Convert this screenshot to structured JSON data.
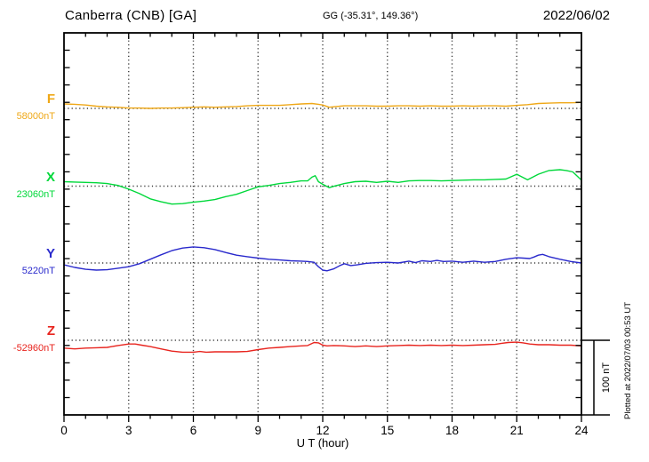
{
  "header": {
    "station": "Canberra (CNB)  [GA]",
    "coords": "GG (-35.31°, 149.36°)",
    "date": "2022/06/02"
  },
  "channels": [
    {
      "letter": "F",
      "value": "58000nT",
      "color": "#efa818"
    },
    {
      "letter": "X",
      "value": "23060nT",
      "color": "#00d83a"
    },
    {
      "letter": "Y",
      "value": "5220nT",
      "color": "#2929cc"
    },
    {
      "letter": "Z",
      "value": "-52960nT",
      "color": "#e8241e"
    }
  ],
  "axis": {
    "xlabel": "U T (hour)"
  },
  "scale_bar": {
    "label": "100 nT",
    "span_nT": 100
  },
  "footer": {
    "plotted": "Plotted at 2022/07/03 00:53 UT"
  },
  "chart_data": {
    "type": "line",
    "title": "Canberra (CNB) [GA] magnetogram 2022/06/02",
    "xlabel": "U T (hour)",
    "y_unit": "nT",
    "x_range": [
      0,
      24
    ],
    "x_ticks": [
      0,
      3,
      6,
      9,
      12,
      15,
      18,
      21,
      24
    ],
    "grid": "vertical-dotted-every-3h",
    "baseline_style": "horizontal-dotted-per-channel",
    "series": [
      {
        "name": "F",
        "base_value_nT": 58000,
        "color": "#efa818",
        "points": [
          [
            0,
            6
          ],
          [
            0.5,
            5.5
          ],
          [
            1,
            4.5
          ],
          [
            1.5,
            3
          ],
          [
            2,
            2
          ],
          [
            2.5,
            1.5
          ],
          [
            3,
            0.5
          ],
          [
            3.5,
            0.5
          ],
          [
            4,
            0
          ],
          [
            4.5,
            0.5
          ],
          [
            5,
            0.5
          ],
          [
            5.5,
            1
          ],
          [
            6,
            1.5
          ],
          [
            6.5,
            2
          ],
          [
            7,
            1.5
          ],
          [
            7.5,
            2
          ],
          [
            8,
            2.5
          ],
          [
            8.5,
            3.5
          ],
          [
            9,
            4
          ],
          [
            9.5,
            4
          ],
          [
            10,
            4
          ],
          [
            10.5,
            5
          ],
          [
            11,
            6
          ],
          [
            11.5,
            6.5
          ],
          [
            11.8,
            5.5
          ],
          [
            12,
            4.5
          ],
          [
            12.3,
            1.5
          ],
          [
            12.6,
            2.5
          ],
          [
            13,
            3.5
          ],
          [
            13.5,
            3.5
          ],
          [
            14,
            3.5
          ],
          [
            14.5,
            3
          ],
          [
            15,
            3
          ],
          [
            15.5,
            3.5
          ],
          [
            16,
            3.5
          ],
          [
            16.5,
            3
          ],
          [
            17,
            3.5
          ],
          [
            17.5,
            3
          ],
          [
            18,
            3
          ],
          [
            18.5,
            3.5
          ],
          [
            19,
            3
          ],
          [
            19.5,
            3.5
          ],
          [
            20,
            3.5
          ],
          [
            20.5,
            3
          ],
          [
            21,
            4
          ],
          [
            21.5,
            5
          ],
          [
            22,
            6.5
          ],
          [
            22.5,
            7
          ],
          [
            23,
            7.5
          ],
          [
            23.5,
            7.5
          ],
          [
            24,
            8
          ]
        ]
      },
      {
        "name": "X",
        "base_value_nT": 23060,
        "color": "#00d83a",
        "points": [
          [
            0,
            6
          ],
          [
            0.5,
            5.5
          ],
          [
            1,
            5
          ],
          [
            1.5,
            4.5
          ],
          [
            2,
            3.5
          ],
          [
            2.5,
            1
          ],
          [
            3,
            -4
          ],
          [
            3.5,
            -10
          ],
          [
            4,
            -17
          ],
          [
            4.5,
            -21
          ],
          [
            5,
            -24
          ],
          [
            5.5,
            -23.5
          ],
          [
            6,
            -21.5
          ],
          [
            6.5,
            -20
          ],
          [
            7,
            -18
          ],
          [
            7.5,
            -14
          ],
          [
            8,
            -11
          ],
          [
            8.5,
            -6
          ],
          [
            9,
            -1
          ],
          [
            9.5,
            1
          ],
          [
            10,
            3.5
          ],
          [
            10.5,
            5
          ],
          [
            11,
            7
          ],
          [
            11.3,
            7
          ],
          [
            11.5,
            12
          ],
          [
            11.65,
            14
          ],
          [
            11.8,
            6
          ],
          [
            12,
            2.5
          ],
          [
            12.3,
            -2
          ],
          [
            12.6,
            0.5
          ],
          [
            13,
            3.5
          ],
          [
            13.5,
            6
          ],
          [
            14,
            6.5
          ],
          [
            14.5,
            5
          ],
          [
            15,
            6.5
          ],
          [
            15.5,
            5
          ],
          [
            16,
            7
          ],
          [
            16.5,
            7.5
          ],
          [
            17,
            7.5
          ],
          [
            17.5,
            7
          ],
          [
            18,
            7.5
          ],
          [
            18.5,
            8
          ],
          [
            19,
            8.5
          ],
          [
            19.5,
            8.5
          ],
          [
            20,
            9
          ],
          [
            20.5,
            9.5
          ],
          [
            21,
            16
          ],
          [
            21.2,
            13
          ],
          [
            21.5,
            8.5
          ],
          [
            22,
            16
          ],
          [
            22.5,
            21
          ],
          [
            23,
            22
          ],
          [
            23.3,
            21
          ],
          [
            23.6,
            19
          ],
          [
            24,
            8
          ]
        ]
      },
      {
        "name": "Y",
        "base_value_nT": 5220,
        "color": "#2929cc",
        "points": [
          [
            0,
            -2.5
          ],
          [
            0.5,
            -6
          ],
          [
            1,
            -8.5
          ],
          [
            1.5,
            -9.5
          ],
          [
            2,
            -9
          ],
          [
            2.5,
            -7
          ],
          [
            3,
            -5
          ],
          [
            3.5,
            -1
          ],
          [
            4,
            5
          ],
          [
            4.5,
            11
          ],
          [
            5,
            16.5
          ],
          [
            5.5,
            20
          ],
          [
            6,
            21.5
          ],
          [
            6.5,
            20.5
          ],
          [
            7,
            18
          ],
          [
            7.5,
            14
          ],
          [
            8,
            10.5
          ],
          [
            8.5,
            8.5
          ],
          [
            9,
            6.5
          ],
          [
            9.5,
            5
          ],
          [
            10,
            4
          ],
          [
            10.5,
            3
          ],
          [
            11,
            2.5
          ],
          [
            11.3,
            2
          ],
          [
            11.6,
            1
          ],
          [
            11.8,
            -5
          ],
          [
            12,
            -9.5
          ],
          [
            12.2,
            -10.5
          ],
          [
            12.5,
            -8
          ],
          [
            12.8,
            -3.5
          ],
          [
            13,
            -1
          ],
          [
            13.3,
            -3.5
          ],
          [
            13.6,
            -2.5
          ],
          [
            14,
            -0.5
          ],
          [
            14.5,
            0.5
          ],
          [
            15,
            1
          ],
          [
            15.5,
            0
          ],
          [
            16,
            2.5
          ],
          [
            16.3,
            0.5
          ],
          [
            16.6,
            3
          ],
          [
            17,
            2
          ],
          [
            17.3,
            3.5
          ],
          [
            17.6,
            2
          ],
          [
            18,
            2.5
          ],
          [
            18.5,
            1
          ],
          [
            19,
            2.5
          ],
          [
            19.5,
            1
          ],
          [
            20,
            2
          ],
          [
            20.5,
            5
          ],
          [
            21,
            7
          ],
          [
            21.3,
            6.5
          ],
          [
            21.6,
            6
          ],
          [
            21.8,
            8
          ],
          [
            22,
            10.5
          ],
          [
            22.2,
            11.5
          ],
          [
            22.5,
            8.5
          ],
          [
            23,
            5
          ],
          [
            23.5,
            2
          ],
          [
            24,
            0
          ]
        ]
      },
      {
        "name": "Z",
        "base_value_nT": -52960,
        "color": "#e8241e",
        "points": [
          [
            0,
            -10.5
          ],
          [
            0.5,
            -11.5
          ],
          [
            1,
            -10.5
          ],
          [
            1.5,
            -10
          ],
          [
            2,
            -9.5
          ],
          [
            2.5,
            -7
          ],
          [
            3,
            -5
          ],
          [
            3.3,
            -5
          ],
          [
            3.6,
            -6.5
          ],
          [
            4,
            -8.5
          ],
          [
            4.5,
            -11.5
          ],
          [
            5,
            -14.5
          ],
          [
            5.5,
            -16
          ],
          [
            6,
            -16
          ],
          [
            6.3,
            -15
          ],
          [
            6.6,
            -16
          ],
          [
            7,
            -15.5
          ],
          [
            7.5,
            -15.5
          ],
          [
            8,
            -15.5
          ],
          [
            8.5,
            -15
          ],
          [
            9,
            -12.5
          ],
          [
            9.5,
            -10.5
          ],
          [
            10,
            -9.5
          ],
          [
            10.5,
            -8.5
          ],
          [
            11,
            -7.5
          ],
          [
            11.3,
            -7
          ],
          [
            11.6,
            -3
          ],
          [
            11.8,
            -3.5
          ],
          [
            12,
            -6.5
          ],
          [
            12.2,
            -7.5
          ],
          [
            12.5,
            -7
          ],
          [
            13,
            -7.5
          ],
          [
            13.5,
            -8.5
          ],
          [
            14,
            -7.5
          ],
          [
            14.5,
            -8.5
          ],
          [
            15,
            -7.5
          ],
          [
            15.5,
            -7
          ],
          [
            16,
            -6.5
          ],
          [
            16.5,
            -7
          ],
          [
            17,
            -6.5
          ],
          [
            17.5,
            -7
          ],
          [
            18,
            -6.5
          ],
          [
            18.5,
            -7
          ],
          [
            19,
            -6.5
          ],
          [
            19.5,
            -6
          ],
          [
            20,
            -5.5
          ],
          [
            20.3,
            -4
          ],
          [
            20.6,
            -3
          ],
          [
            21,
            -2.5
          ],
          [
            21.3,
            -3.5
          ],
          [
            21.6,
            -5
          ],
          [
            22,
            -6
          ],
          [
            22.5,
            -6
          ],
          [
            23,
            -6.5
          ],
          [
            23.5,
            -6.5
          ],
          [
            24,
            -7.5
          ]
        ]
      }
    ]
  }
}
